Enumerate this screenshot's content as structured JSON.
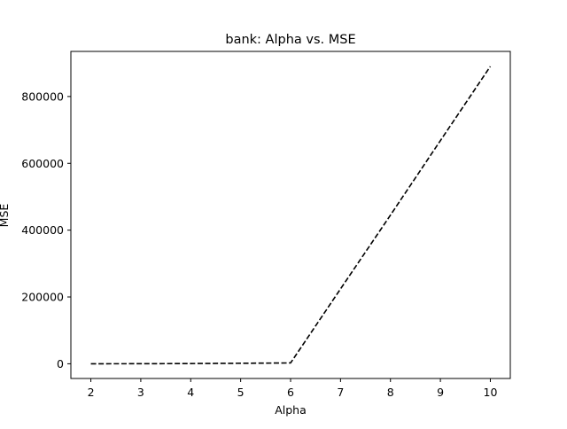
{
  "chart_data": {
    "type": "line",
    "title": "bank: Alpha vs. MSE",
    "xlabel": "Alpha",
    "ylabel": "MSE",
    "x": [
      2,
      3,
      4,
      5,
      6,
      7,
      8,
      9,
      10
    ],
    "series": [
      {
        "values": [
          0,
          200,
          700,
          1500,
          2500,
          224000,
          445000,
          668000,
          890000
        ],
        "color": "#000000",
        "line_style": "dashed"
      }
    ],
    "xlim": [
      1.6,
      10.4
    ],
    "ylim": [
      -44000,
      935000
    ],
    "xticks": [
      "2",
      "3",
      "4",
      "5",
      "6",
      "7",
      "8",
      "9",
      "10"
    ],
    "yticks": [
      "0",
      "200000",
      "400000",
      "600000",
      "800000"
    ],
    "grid": false,
    "legend": "none"
  }
}
